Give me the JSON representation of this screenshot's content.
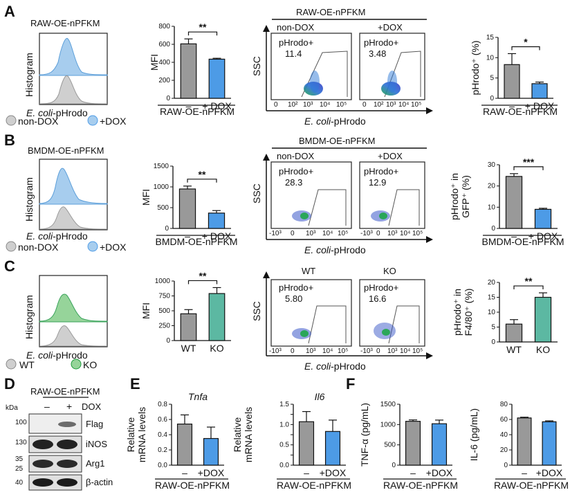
{
  "colors": {
    "gray": "#999999",
    "blue": "#4d9be6",
    "teal": "#5cb8a2",
    "light_blue_fill": "#a7cdee",
    "light_gray_fill": "#cfcfcf",
    "light_green_fill": "#96d49a"
  },
  "panels": [
    {
      "letter": "A",
      "cell": "RAW-OE-nPFKM",
      "histogram": {
        "ylabel": "Histogram",
        "xlabel_italic": "E. coli",
        "xlabel_rest": "-pHrodo",
        "legend": [
          "non-DOX",
          "+DOX"
        ]
      },
      "flow": {
        "group_label": "RAW-OE-nPFKM",
        "conditions": [
          "non-DOX",
          "+DOX"
        ],
        "gate_label": "pHrodo+",
        "values": [
          "11.4",
          "3.48"
        ],
        "yaxis": "SSC",
        "xaxis_italic": "E. coli",
        "xaxis_rest": "-pHrodo",
        "xticks": [
          "0",
          "10²",
          "10³",
          "10⁴",
          "10⁵"
        ]
      },
      "bar_right": {
        "ylabel": "pHrodo⁺ (%)",
        "sig": "*",
        "group": "RAW-OE-nPFKM"
      }
    },
    {
      "letter": "B",
      "cell": "BMDM-OE-nPFKM",
      "histogram": {
        "ylabel": "Histogram",
        "xlabel_italic": "E. coli",
        "xlabel_rest": "-pHrodo",
        "legend": [
          "non-DOX",
          "+DOX"
        ]
      },
      "flow": {
        "group_label": "BMDM-OE-nPFKM",
        "conditions": [
          "non-DOX",
          "+DOX"
        ],
        "gate_label": "pHrodo+",
        "values": [
          "28.3",
          "12.9"
        ],
        "yaxis": "SSC",
        "xaxis_italic": "E. coli",
        "xaxis_rest": "-pHrodo",
        "xticks": [
          "-10³",
          "0",
          "10³",
          "10⁴",
          "10⁵"
        ]
      },
      "bar_right": {
        "ylabel_1": "pHrodo⁺ in",
        "ylabel_2": "GFP⁺ (%)",
        "sig": "***",
        "group": "BMDM-OE-nPFKM"
      }
    },
    {
      "letter": "C",
      "histogram": {
        "ylabel": "Histogram",
        "xlabel_italic": "E. coli",
        "xlabel_rest": "-pHrodo",
        "legend": [
          "WT",
          "KO"
        ]
      },
      "flow": {
        "conditions": [
          "WT",
          "KO"
        ],
        "gate_label": "pHrodo+",
        "values": [
          "5.80",
          "16.6"
        ],
        "yaxis": "SSC",
        "xaxis_italic": "E. coli",
        "xaxis_rest": "-pHrodo",
        "xticks": [
          "-10³",
          "0",
          "10³",
          "10⁴",
          "10⁵"
        ]
      },
      "bar_right": {
        "ylabel_1": "pHrodo⁺ in",
        "ylabel_2": "F4/80⁺ (%)",
        "sig": "**"
      }
    }
  ],
  "chart_data": [
    {
      "id": "A-mfi",
      "type": "bar",
      "categories": [
        "–",
        "+ DOX"
      ],
      "values": [
        605,
        435
      ],
      "errors": [
        55,
        10
      ],
      "ylabel": "MFI",
      "ylim": [
        0,
        800
      ],
      "yticks": [
        0,
        200,
        400,
        600,
        800
      ],
      "significance": "**",
      "group_label": "RAW-OE-nPFKM",
      "colors": [
        "#999999",
        "#4d9be6"
      ]
    },
    {
      "id": "A-phrodo",
      "type": "bar",
      "categories": [
        "–",
        "+ DOX"
      ],
      "values": [
        8.3,
        3.6
      ],
      "errors": [
        2.7,
        0.4
      ],
      "ylabel": "pHrodo⁺ (%)",
      "ylim": [
        0,
        15
      ],
      "yticks": [
        0,
        5,
        10,
        15
      ],
      "significance": "*",
      "group_label": "RAW-OE-nPFKM",
      "colors": [
        "#999999",
        "#4d9be6"
      ]
    },
    {
      "id": "B-mfi",
      "type": "bar",
      "categories": [
        "–",
        "+ DOX"
      ],
      "values": [
        950,
        370
      ],
      "errors": [
        70,
        60
      ],
      "ylabel": "MFI",
      "ylim": [
        0,
        1500
      ],
      "yticks": [
        0,
        500,
        1000,
        1500
      ],
      "significance": "**",
      "group_label": "BMDM-OE-nPFKM",
      "colors": [
        "#999999",
        "#4d9be6"
      ]
    },
    {
      "id": "B-phrodo",
      "type": "bar",
      "categories": [
        "–",
        "+ DOX"
      ],
      "values": [
        24.5,
        9
      ],
      "errors": [
        1.3,
        0.5
      ],
      "ylabel": "pHrodo⁺ in GFP⁺ (%)",
      "ylim": [
        0,
        30
      ],
      "yticks": [
        0,
        10,
        20,
        30
      ],
      "significance": "***",
      "group_label": "BMDM-OE-nPFKM",
      "colors": [
        "#999999",
        "#4d9be6"
      ]
    },
    {
      "id": "C-mfi",
      "type": "bar",
      "categories": [
        "WT",
        "KO"
      ],
      "values": [
        450,
        790
      ],
      "errors": [
        70,
        100
      ],
      "ylabel": "MFI",
      "ylim": [
        0,
        1000
      ],
      "yticks": [
        0,
        250,
        500,
        750,
        1000
      ],
      "significance": "**",
      "colors": [
        "#999999",
        "#5cb8a2"
      ]
    },
    {
      "id": "C-phrodo",
      "type": "bar",
      "categories": [
        "WT",
        "KO"
      ],
      "values": [
        6,
        15
      ],
      "errors": [
        1.5,
        1.5
      ],
      "ylabel": "pHrodo⁺ in F4/80⁺ (%)",
      "ylim": [
        0,
        20
      ],
      "yticks": [
        0,
        5,
        10,
        15,
        20
      ],
      "significance": "**",
      "colors": [
        "#999999",
        "#5cb8a2"
      ]
    },
    {
      "id": "E-tnfa",
      "type": "bar",
      "categories": [
        "–",
        "+DOX"
      ],
      "values": [
        0.54,
        0.35
      ],
      "errors": [
        0.12,
        0.15
      ],
      "title": "Tnfa",
      "ylabel": "Relative mRNA levels",
      "ylim": [
        0,
        0.8
      ],
      "yticks": [
        0.0,
        0.2,
        0.4,
        0.6,
        0.8
      ],
      "ytick_labels": [
        "0.0",
        "0.2",
        "0.4",
        "0.6",
        "0.8"
      ],
      "group_label": "RAW-OE-nPFKM",
      "colors": [
        "#999999",
        "#4d9be6"
      ]
    },
    {
      "id": "E-il6",
      "type": "bar",
      "categories": [
        "–",
        "+DOX"
      ],
      "values": [
        1.07,
        0.83
      ],
      "errors": [
        0.25,
        0.28
      ],
      "title": "Il6",
      "ylabel": "Relative mRNA levels",
      "ylim": [
        0,
        1.5
      ],
      "yticks": [
        0.0,
        0.25,
        0.5,
        0.75,
        1.0,
        1.25,
        1.5
      ],
      "ytick_labels": [
        "0.0",
        "",
        "0.5",
        "",
        "1.0",
        "",
        "1.5"
      ],
      "group_label": "RAW-OE-nPFKM",
      "colors": [
        "#999999",
        "#4d9be6"
      ]
    },
    {
      "id": "F-tnf",
      "type": "bar",
      "categories": [
        "–",
        "+DOX"
      ],
      "values": [
        1080,
        1020
      ],
      "errors": [
        35,
        90
      ],
      "ylabel": "TNF-α (pg/mL)",
      "ylim": [
        0,
        1500
      ],
      "yticks": [
        0,
        500,
        1000,
        1500
      ],
      "group_label": "RAW-OE-nPFKM",
      "colors": [
        "#999999",
        "#4d9be6"
      ]
    },
    {
      "id": "F-il6",
      "type": "bar",
      "categories": [
        "–",
        "+DOX"
      ],
      "values": [
        62,
        57
      ],
      "errors": [
        1,
        1.2
      ],
      "ylabel": "IL-6 (pg/mL)",
      "ylim": [
        0,
        80
      ],
      "yticks": [
        0,
        20,
        40,
        60,
        80
      ],
      "group_label": "RAW-OE-nPFKM",
      "colors": [
        "#999999",
        "#4d9be6"
      ]
    }
  ],
  "western": {
    "letter": "D",
    "title": "RAW-OE-nPFKM",
    "kda_label": "kDa",
    "dox_signs": [
      "–",
      "+"
    ],
    "dox_label": "DOX",
    "bands": [
      {
        "name": "Flag",
        "markers": [
          "100"
        ]
      },
      {
        "name": "iNOS",
        "markers": [
          "130"
        ]
      },
      {
        "name": "Arg1",
        "markers": [
          "35",
          "25"
        ]
      },
      {
        "name": "β-actin",
        "markers": [
          "40"
        ]
      }
    ]
  },
  "labels": {
    "E": "E",
    "F": "F"
  }
}
